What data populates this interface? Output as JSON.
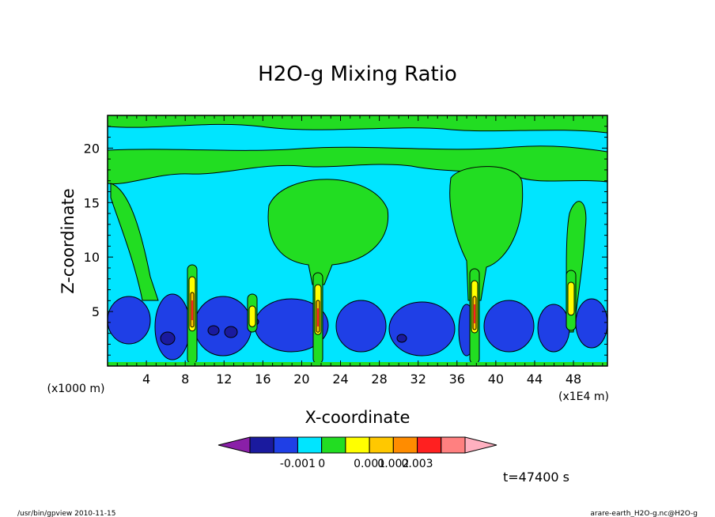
{
  "chart_data": {
    "type": "heatmap",
    "title": "H2O-g Mixing Ratio",
    "xlabel": "X-coordinate",
    "ylabel": "Z-coordinate",
    "x_unit_left": "(x1000 m)",
    "x_unit_right": "(x1E4 m)",
    "xlim": [
      0,
      51.5
    ],
    "ylim": [
      0,
      23
    ],
    "xticks": [
      4,
      8,
      12,
      16,
      20,
      24,
      28,
      32,
      36,
      40,
      44,
      48
    ],
    "yticks": [
      5,
      10,
      15,
      20
    ],
    "colorbar": {
      "tick_labels": [
        "-0.001",
        "0",
        "0.001",
        "0.002",
        "0.003"
      ],
      "colors": [
        "#8a1fa8",
        "#1a1a9e",
        "#1f3fe6",
        "#00e5ff",
        "#22dd22",
        "#ffff00",
        "#ffc800",
        "#ff8c00",
        "#ff2020",
        "#ff8080",
        "#ffb0c0"
      ]
    },
    "time_label": "t=47400 s"
  },
  "footer": {
    "left": "/usr/bin/gpview   2010-11-15",
    "right": "arare-earth_H2O-g.nc@H2O-g"
  }
}
